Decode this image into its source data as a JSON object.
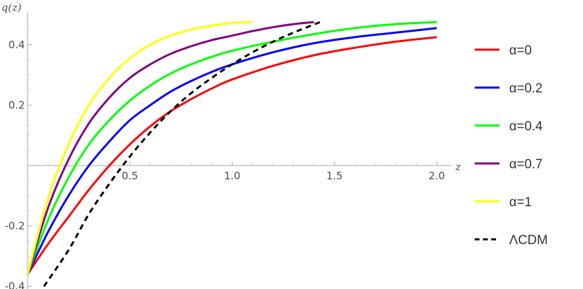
{
  "chart_data": {
    "type": "line",
    "title": "",
    "xlabel": "z",
    "ylabel": "q(z)",
    "xlim": [
      0,
      2.0
    ],
    "ylim": [
      -0.4,
      0.48
    ],
    "grid": false,
    "legend_placement": "right",
    "x_ticks": [
      0.5,
      1.0,
      1.5,
      2.0
    ],
    "x_tick_labels": [
      "0.5",
      "1.0",
      "1.5",
      "2.0"
    ],
    "y_ticks": [
      0.4,
      0.2,
      -0.2,
      -0.4
    ],
    "y_tick_labels": [
      "0.4",
      "0.2",
      "-0.2",
      "-0.4"
    ],
    "series": [
      {
        "name": "α=0",
        "color": "#ff0000",
        "dash": "solid",
        "x": [
          0,
          0.1,
          0.2,
          0.3,
          0.4,
          0.5,
          0.6,
          0.7,
          0.8,
          0.9,
          1.0,
          1.2,
          1.4,
          1.6,
          1.8,
          2.0
        ],
        "y": [
          -0.36,
          -0.26,
          -0.17,
          -0.08,
          0.0,
          0.07,
          0.13,
          0.18,
          0.22,
          0.255,
          0.285,
          0.33,
          0.365,
          0.39,
          0.41,
          0.425
        ]
      },
      {
        "name": "α=0.2",
        "color": "#0000ff",
        "dash": "solid",
        "x": [
          0,
          0.1,
          0.2,
          0.3,
          0.4,
          0.5,
          0.6,
          0.7,
          0.8,
          0.9,
          1.0,
          1.2,
          1.4,
          1.6,
          1.8,
          2.0
        ],
        "y": [
          -0.36,
          -0.22,
          -0.1,
          0.0,
          0.08,
          0.15,
          0.2,
          0.245,
          0.28,
          0.31,
          0.335,
          0.375,
          0.405,
          0.425,
          0.44,
          0.455
        ]
      },
      {
        "name": "α=0.4",
        "color": "#00ff00",
        "dash": "solid",
        "x": [
          0,
          0.1,
          0.2,
          0.3,
          0.4,
          0.5,
          0.6,
          0.7,
          0.8,
          0.9,
          1.0,
          1.2,
          1.4,
          1.6,
          1.8,
          2.0
        ],
        "y": [
          -0.36,
          -0.18,
          -0.04,
          0.07,
          0.15,
          0.215,
          0.265,
          0.305,
          0.335,
          0.36,
          0.38,
          0.41,
          0.435,
          0.455,
          0.468,
          0.475
        ]
      },
      {
        "name": "α=0.7",
        "color": "#800080",
        "dash": "solid",
        "x": [
          0,
          0.1,
          0.2,
          0.3,
          0.4,
          0.5,
          0.6,
          0.7,
          0.8,
          0.9,
          1.0,
          1.1,
          1.2,
          1.3,
          1.4
        ],
        "y": [
          -0.36,
          -0.14,
          0.02,
          0.14,
          0.225,
          0.29,
          0.335,
          0.37,
          0.395,
          0.415,
          0.43,
          0.445,
          0.458,
          0.468,
          0.475
        ]
      },
      {
        "name": "α=1",
        "color": "#ffff00",
        "dash": "solid",
        "x": [
          0,
          0.1,
          0.2,
          0.3,
          0.4,
          0.5,
          0.6,
          0.7,
          0.8,
          0.9,
          1.0,
          1.1
        ],
        "y": [
          -0.36,
          -0.11,
          0.07,
          0.2,
          0.29,
          0.355,
          0.4,
          0.43,
          0.45,
          0.463,
          0.472,
          0.475
        ]
      },
      {
        "name": "ΛCDM",
        "color": "#000000",
        "dash": "dashed",
        "x": [
          0.08,
          0.2,
          0.3,
          0.4,
          0.5,
          0.6,
          0.7,
          0.8,
          0.9,
          1.0,
          1.1,
          1.2,
          1.3,
          1.43
        ],
        "y": [
          -0.4,
          -0.28,
          -0.16,
          -0.06,
          0.03,
          0.11,
          0.18,
          0.24,
          0.29,
          0.335,
          0.375,
          0.41,
          0.44,
          0.475
        ]
      }
    ]
  }
}
